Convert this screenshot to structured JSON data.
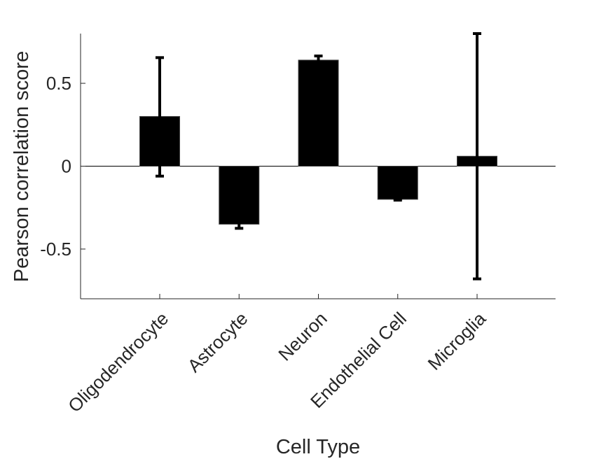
{
  "chart_data": {
    "type": "bar",
    "title": "",
    "xlabel": "Cell Type",
    "ylabel": "Pearson correlation score",
    "categories": [
      "Oligodendrocyte",
      "Astrocyte",
      "Neuron",
      "Endothelial Cell",
      "Microglia"
    ],
    "values": [
      0.3,
      -0.35,
      0.64,
      -0.2,
      0.06
    ],
    "error_low": [
      -0.06,
      -0.375,
      0.62,
      -0.205,
      -0.68
    ],
    "error_high": [
      0.655,
      -0.33,
      0.665,
      -0.195,
      0.8
    ],
    "ylim": [
      -0.8,
      0.8
    ],
    "yticks": [
      0.5,
      0,
      -0.5
    ],
    "ytick_labels": [
      "0.5",
      "0",
      "-0.5"
    ],
    "bar_color": "#000000",
    "grid": false,
    "legend": false
  }
}
